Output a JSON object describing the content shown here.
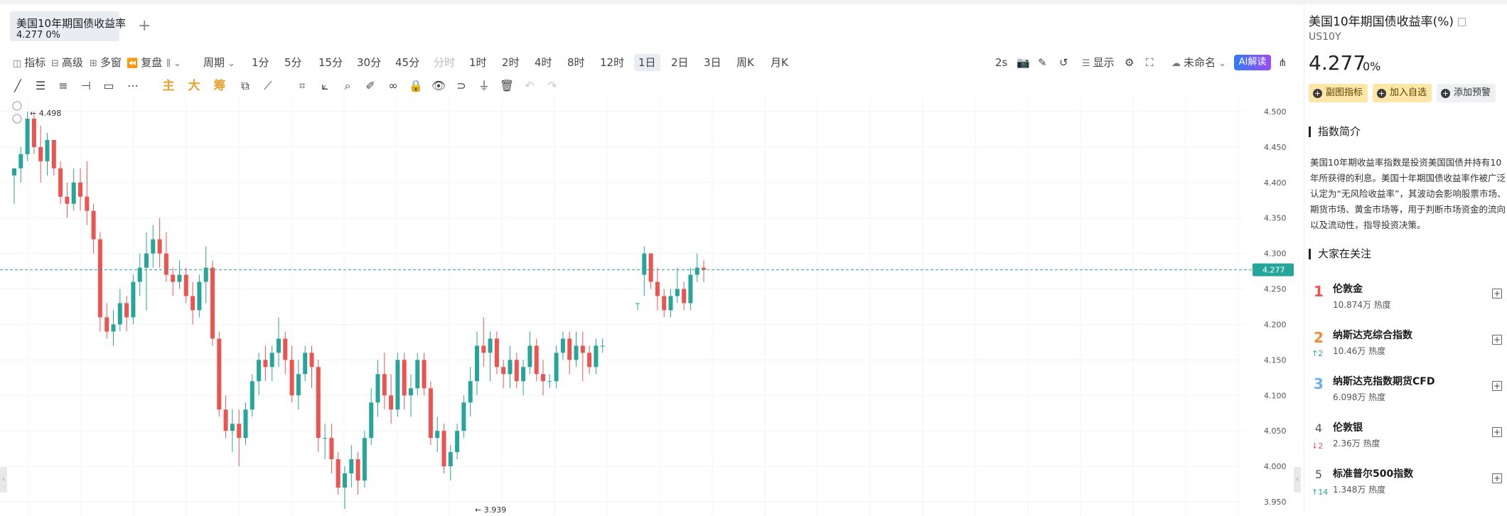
{
  "tab": {
    "title": "美国10年期国债收益率",
    "value": "4.277 0%",
    "add": "+"
  },
  "toolbar": {
    "indicator": "指标",
    "advanced": "高级",
    "multi_window": "多窗",
    "replay": "复盘",
    "period_label": "周期",
    "periods": [
      "1分",
      "5分",
      "15分",
      "30分",
      "45分",
      "分时",
      "1时",
      "2时",
      "4时",
      "8时",
      "12时",
      "1日",
      "2日",
      "3日",
      "周K",
      "月K"
    ],
    "active_period": "1日",
    "refresh": "2s",
    "display": "显示",
    "layout_name": "未命名",
    "ai": "AI解读"
  },
  "drawtools": {
    "main": "主",
    "big": "大",
    "chip": "筹"
  },
  "chart_data": {
    "type": "candlestick",
    "y_ticks": [
      "4.500",
      "4.450",
      "4.400",
      "4.350",
      "4.300",
      "4.250",
      "4.200",
      "4.150",
      "4.100",
      "4.050",
      "4.000",
      "3.950"
    ],
    "ylim": [
      3.935,
      4.51
    ],
    "current_price": "4.277",
    "high_label": "4.498",
    "low_label": "3.939",
    "grid": true,
    "up_color": "#26a69a",
    "down_color": "#ef5350",
    "bars": [
      [
        4.41,
        4.42,
        4.37,
        4.42
      ],
      [
        4.42,
        4.45,
        4.4,
        4.44
      ],
      [
        4.44,
        4.5,
        4.43,
        4.49
      ],
      [
        4.49,
        4.5,
        4.44,
        4.45
      ],
      [
        4.45,
        4.48,
        4.4,
        4.43
      ],
      [
        4.43,
        4.47,
        4.41,
        4.46
      ],
      [
        4.46,
        4.46,
        4.41,
        4.42
      ],
      [
        4.42,
        4.43,
        4.37,
        4.38
      ],
      [
        4.38,
        4.4,
        4.35,
        4.37
      ],
      [
        4.37,
        4.42,
        4.36,
        4.4
      ],
      [
        4.4,
        4.42,
        4.36,
        4.38
      ],
      [
        4.38,
        4.43,
        4.34,
        4.36
      ],
      [
        4.36,
        4.37,
        4.3,
        4.32
      ],
      [
        4.32,
        4.33,
        4.19,
        4.21
      ],
      [
        4.21,
        4.23,
        4.18,
        4.19
      ],
      [
        4.19,
        4.22,
        4.17,
        4.2
      ],
      [
        4.2,
        4.25,
        4.19,
        4.23
      ],
      [
        4.23,
        4.24,
        4.19,
        4.21
      ],
      [
        4.21,
        4.27,
        4.2,
        4.26
      ],
      [
        4.26,
        4.3,
        4.24,
        4.28
      ],
      [
        4.28,
        4.33,
        4.22,
        4.3
      ],
      [
        4.3,
        4.34,
        4.28,
        4.32
      ],
      [
        4.32,
        4.35,
        4.28,
        4.3
      ],
      [
        4.3,
        4.33,
        4.26,
        4.27
      ],
      [
        4.27,
        4.28,
        4.24,
        4.26
      ],
      [
        4.26,
        4.29,
        4.25,
        4.27
      ],
      [
        4.27,
        4.28,
        4.23,
        4.24
      ],
      [
        4.24,
        4.26,
        4.2,
        4.22
      ],
      [
        4.22,
        4.27,
        4.21,
        4.26
      ],
      [
        4.26,
        4.31,
        4.23,
        4.28
      ],
      [
        4.28,
        4.29,
        4.17,
        4.18
      ],
      [
        4.18,
        4.19,
        4.07,
        4.08
      ],
      [
        4.08,
        4.1,
        4.04,
        4.05
      ],
      [
        4.05,
        4.08,
        4.02,
        4.06
      ],
      [
        4.06,
        4.08,
        4.0,
        4.04
      ],
      [
        4.04,
        4.09,
        4.03,
        4.08
      ],
      [
        4.08,
        4.13,
        4.07,
        4.12
      ],
      [
        4.12,
        4.16,
        4.1,
        4.15
      ],
      [
        4.15,
        4.17,
        4.12,
        4.14
      ],
      [
        4.14,
        4.17,
        4.12,
        4.16
      ],
      [
        4.16,
        4.21,
        4.14,
        4.18
      ],
      [
        4.18,
        4.19,
        4.13,
        4.15
      ],
      [
        4.15,
        4.17,
        4.09,
        4.1
      ],
      [
        4.1,
        4.15,
        4.08,
        4.13
      ],
      [
        4.13,
        4.17,
        4.12,
        4.16
      ],
      [
        4.16,
        4.17,
        4.11,
        4.14
      ],
      [
        4.14,
        4.15,
        4.02,
        4.04
      ],
      [
        4.04,
        4.06,
        4.01,
        4.04
      ],
      [
        4.04,
        4.06,
        3.99,
        4.01
      ],
      [
        4.01,
        4.02,
        3.96,
        3.97
      ],
      [
        3.97,
        4.0,
        3.94,
        3.99
      ],
      [
        3.99,
        4.03,
        3.97,
        4.01
      ],
      [
        4.01,
        4.02,
        3.96,
        3.98
      ],
      [
        3.98,
        4.05,
        3.97,
        4.04
      ],
      [
        4.04,
        4.11,
        4.03,
        4.09
      ],
      [
        4.09,
        4.15,
        4.07,
        4.13
      ],
      [
        4.13,
        4.16,
        4.08,
        4.1
      ],
      [
        4.1,
        4.13,
        4.06,
        4.08
      ],
      [
        4.08,
        4.16,
        4.07,
        4.15
      ],
      [
        4.15,
        4.16,
        4.08,
        4.1
      ],
      [
        4.1,
        4.13,
        4.07,
        4.11
      ],
      [
        4.11,
        4.16,
        4.1,
        4.15
      ],
      [
        4.15,
        4.16,
        4.1,
        4.11
      ],
      [
        4.11,
        4.12,
        4.03,
        4.04
      ],
      [
        4.04,
        4.07,
        4.02,
        4.05
      ],
      [
        4.05,
        4.06,
        3.99,
        4.0
      ],
      [
        4.0,
        4.03,
        3.98,
        4.02
      ],
      [
        4.02,
        4.06,
        4.01,
        4.05
      ],
      [
        4.05,
        4.1,
        4.04,
        4.09
      ],
      [
        4.09,
        4.14,
        4.07,
        4.12
      ],
      [
        4.12,
        4.19,
        4.1,
        4.17
      ],
      [
        4.17,
        4.21,
        4.14,
        4.16
      ],
      [
        4.16,
        4.19,
        4.12,
        4.18
      ],
      [
        4.18,
        4.19,
        4.13,
        4.14
      ],
      [
        4.14,
        4.15,
        4.11,
        4.13
      ],
      [
        4.13,
        4.17,
        4.11,
        4.15
      ],
      [
        4.15,
        4.16,
        4.11,
        4.12
      ],
      [
        4.12,
        4.15,
        4.1,
        4.14
      ],
      [
        4.14,
        4.19,
        4.13,
        4.17
      ],
      [
        4.17,
        4.18,
        4.12,
        4.13
      ],
      [
        4.13,
        4.15,
        4.1,
        4.12
      ],
      [
        4.12,
        4.13,
        4.11,
        4.12
      ],
      [
        4.12,
        4.17,
        4.11,
        4.16
      ],
      [
        4.16,
        4.19,
        4.15,
        4.18
      ],
      [
        4.18,
        4.19,
        4.13,
        4.15
      ],
      [
        4.15,
        4.19,
        4.14,
        4.17
      ],
      [
        4.17,
        4.19,
        4.12,
        4.16
      ],
      [
        4.16,
        4.17,
        4.13,
        4.14
      ],
      [
        4.14,
        4.18,
        4.13,
        4.17
      ],
      [
        4.17,
        4.18,
        4.16,
        4.17
      ],
      [
        4.23,
        4.23,
        4.22,
        4.23
      ],
      [
        4.27,
        4.31,
        4.24,
        4.3
      ],
      [
        4.3,
        4.3,
        4.25,
        4.26
      ],
      [
        4.26,
        4.28,
        4.22,
        4.24
      ],
      [
        4.24,
        4.25,
        4.21,
        4.22
      ],
      [
        4.22,
        4.25,
        4.21,
        4.24
      ],
      [
        4.24,
        4.28,
        4.23,
        4.25
      ],
      [
        4.25,
        4.26,
        4.22,
        4.23
      ],
      [
        4.23,
        4.28,
        4.22,
        4.27
      ],
      [
        4.27,
        4.3,
        4.26,
        4.28
      ],
      [
        4.28,
        4.29,
        4.26,
        4.277
      ]
    ]
  },
  "panel": {
    "title": "美国10年期国债收益率(%)",
    "code": "US10Y",
    "price": "4.277",
    "change": "0%",
    "btn_sub_indicator": "副图指标",
    "btn_add_watch": "加入自选",
    "btn_alert": "添加预警",
    "intro_title": "指数简介",
    "intro_text": "美国10年期收益率指数是投资美国国债并持有10年所获得的利息。美国十年期国债收益率作被广泛认定为“无风险收益率”，其波动会影响股票市场、期货市场、黄金市场等，用于判断市场资金的流向以及流动性，指导投资决策。",
    "watch_title": "大家在关注",
    "watch": [
      {
        "rank": "1",
        "name": "伦敦金",
        "heat": "10.874万 热度",
        "delta": "",
        "rank_color": "#ef5350",
        "delta_color": "#26a69a"
      },
      {
        "rank": "2",
        "name": "纳斯达克综合指数",
        "heat": "10.46万 热度",
        "delta": "↑2",
        "rank_color": "#f0883e",
        "delta_color": "#26a69a"
      },
      {
        "rank": "3",
        "name": "纳斯达克指数期货CFD",
        "heat": "6.098万 热度",
        "delta": "",
        "rank_color": "#6aaef0",
        "delta_color": "#26a69a"
      },
      {
        "rank": "4",
        "name": "伦敦银",
        "heat": "2.36万 热度",
        "delta": "↓2",
        "rank_color": "#555555",
        "delta_color": "#ef5350"
      },
      {
        "rank": "5",
        "name": "标准普尔500指数",
        "heat": "1.348万 热度",
        "delta": "↑14",
        "rank_color": "#555555",
        "delta_color": "#26a69a"
      }
    ]
  }
}
